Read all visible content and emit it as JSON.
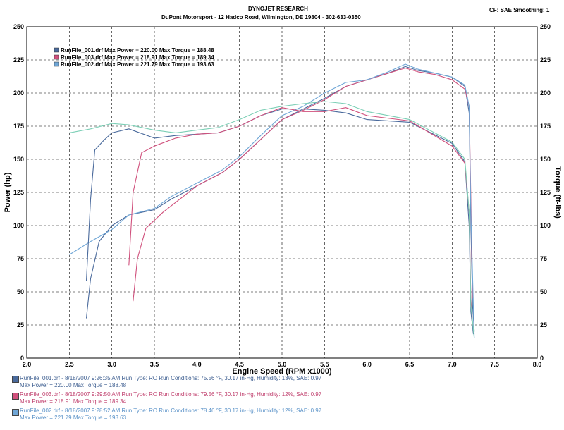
{
  "header": {
    "title": "DYNOJET RESEARCH",
    "subtitle": "DuPont Motorsport - 12 Hadco Road, Wilmington, DE 19804 - 302-633-0350",
    "correction": "CF: SAE  Smoothing: 1"
  },
  "colors": {
    "run001": "#4a6a9c",
    "run003": "#d0507c",
    "run002": "#6fa6d6",
    "run002_torque": "#7ccfb6",
    "grid": "#000000",
    "background": "#ffffff"
  },
  "legend": [
    {
      "name": "RunFile_001.drf",
      "max_power": "Max Power = 220.00",
      "max_torque": "Max Torque = 188.48",
      "label": "RunFile_001.drf Max Power = 220.00     Max Torque = 188.48"
    },
    {
      "name": "RunFile_003.drf",
      "max_power": "Max Power = 218.91",
      "max_torque": "Max Torque = 189.34",
      "label": "RunFile_003.drf Max Power = 218.91     Max Torque = 189.34"
    },
    {
      "name": "RunFile_002.drf",
      "max_power": "Max Power = 221.79",
      "max_torque": "Max Torque = 193.63",
      "label": "RunFile_002.drf Max Power = 221.79     Max Torque = 193.63"
    }
  ],
  "runs": [
    {
      "line1": "RunFile_001.drf - 8/18/2007 9:26:35 AM  Run Type: RO  Run Conditions: 75.56 °F, 30.17 in-Hg,  Humidity: 13%, SAE: 0.97",
      "line2": "Max Power = 220.00  Max Torque = 188.48"
    },
    {
      "line1": "RunFile_003.drf - 8/18/2007 9:29:50 AM  Run Type: RO  Run Conditions: 79.56 °F, 30.17 in-Hg,  Humidity: 12%, SAE: 0.97",
      "line2": "Max Power = 218.91  Max Torque = 189.34"
    },
    {
      "line1": "RunFile_002.drf - 8/18/2007 9:28:52 AM  Run Type: RO  Run Conditions: 78.46 °F, 30.17 in-Hg,  Humidity: 12%, SAE: 0.97",
      "line2": "Max Power = 221.79  Max Torque = 193.63"
    }
  ],
  "chart_data": {
    "type": "line",
    "xlabel": "Engine Speed (RPM x1000)",
    "ylabel": "Power (hp)",
    "y2label": "Torque (ft-lbs)",
    "xlim": [
      2.0,
      8.0
    ],
    "ylim": [
      0,
      250
    ],
    "y2lim": [
      0,
      250
    ],
    "x_ticks": [
      "2.0",
      "2.5",
      "3.0",
      "3.5",
      "4.0",
      "4.5",
      "5.0",
      "5.5",
      "6.0",
      "6.5",
      "7.0",
      "7.5",
      "8.0"
    ],
    "y_ticks": [
      "0",
      "25",
      "50",
      "75",
      "100",
      "125",
      "150",
      "175",
      "200",
      "225",
      "250"
    ],
    "grid": true,
    "legend_position": "top-left",
    "series": [
      {
        "name": "RunFile_001.drf",
        "measure": "power",
        "color": "#4a6a9c",
        "x": [
          2.7,
          2.75,
          2.85,
          3.0,
          3.2,
          3.5,
          3.7,
          4.0,
          4.3,
          4.5,
          4.75,
          5.0,
          5.25,
          5.5,
          5.75,
          6.0,
          6.25,
          6.45,
          6.6,
          6.8,
          7.0,
          7.15,
          7.2,
          7.22,
          7.24,
          7.26
        ],
        "y": [
          30,
          60,
          88,
          100,
          108,
          112,
          120,
          130,
          140,
          150,
          165,
          180,
          188,
          196,
          205,
          210,
          215,
          220,
          217,
          215,
          212,
          205,
          185,
          100,
          40,
          20
        ]
      },
      {
        "name": "RunFile_003.drf",
        "measure": "power",
        "color": "#d0507c",
        "x": [
          3.25,
          3.3,
          3.4,
          3.6,
          3.8,
          4.0,
          4.3,
          4.5,
          4.75,
          5.0,
          5.25,
          5.5,
          5.75,
          6.0,
          6.25,
          6.45,
          6.6,
          6.8,
          7.0,
          7.15,
          7.2,
          7.22,
          7.24
        ],
        "y": [
          43,
          75,
          98,
          110,
          120,
          130,
          140,
          150,
          165,
          180,
          187,
          195,
          205,
          210,
          215,
          218.9,
          216,
          214,
          210,
          203,
          190,
          120,
          45
        ]
      },
      {
        "name": "RunFile_002.drf",
        "measure": "power",
        "color": "#6fa6d6",
        "x": [
          2.5,
          2.75,
          3.0,
          3.2,
          3.5,
          3.7,
          4.0,
          4.3,
          4.5,
          4.75,
          5.0,
          5.25,
          5.5,
          5.75,
          6.0,
          6.25,
          6.45,
          6.6,
          6.8,
          7.0,
          7.15,
          7.2,
          7.22,
          7.26
        ],
        "y": [
          78,
          88,
          97,
          108,
          113,
          122,
          132,
          142,
          152,
          168,
          183,
          190,
          200,
          208,
          210,
          216,
          221.8,
          218,
          215,
          212,
          206,
          190,
          110,
          15
        ]
      },
      {
        "name": "RunFile_001.drf",
        "measure": "torque",
        "color": "#4a6a9c",
        "x": [
          2.7,
          2.75,
          2.8,
          2.9,
          3.0,
          3.2,
          3.5,
          3.75,
          4.0,
          4.25,
          4.5,
          4.75,
          5.0,
          5.25,
          5.5,
          5.75,
          6.0,
          6.5,
          7.0,
          7.15,
          7.2,
          7.22,
          7.25
        ],
        "y": [
          58,
          120,
          157,
          164,
          170,
          173,
          166,
          168,
          169,
          170,
          175,
          183,
          188,
          188,
          187,
          185,
          180,
          178,
          162,
          148,
          100,
          35,
          18
        ]
      },
      {
        "name": "RunFile_003.drf",
        "measure": "torque",
        "color": "#d0507c",
        "x": [
          3.2,
          3.25,
          3.35,
          3.5,
          3.75,
          4.0,
          4.25,
          4.5,
          4.75,
          5.0,
          5.25,
          5.5,
          5.75,
          6.0,
          6.5,
          7.0,
          7.15,
          7.2,
          7.22,
          7.24
        ],
        "y": [
          70,
          125,
          155,
          160,
          166,
          169,
          170,
          175,
          183,
          189,
          186,
          186,
          189,
          183,
          179,
          160,
          147,
          110,
          45,
          25
        ]
      },
      {
        "name": "RunFile_002.drf",
        "measure": "torque",
        "color": "#7ccfb6",
        "x": [
          2.5,
          2.75,
          3.0,
          3.2,
          3.5,
          3.75,
          4.0,
          4.25,
          4.5,
          4.75,
          5.0,
          5.25,
          5.5,
          5.75,
          6.0,
          6.5,
          7.0,
          7.15,
          7.2,
          7.22,
          7.26
        ],
        "y": [
          170,
          173,
          177,
          176,
          172,
          170,
          172,
          174,
          180,
          187,
          190,
          192,
          193.6,
          192,
          186,
          180,
          163,
          150,
          110,
          40,
          15
        ]
      }
    ]
  }
}
